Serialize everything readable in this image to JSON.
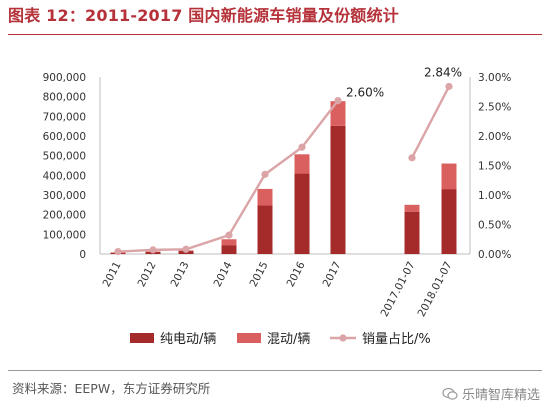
{
  "header": {
    "title": "图表 12：2011-2017 国内新能源车销量及份额统计"
  },
  "chart_data": {
    "type": "bar",
    "categories": [
      "2011",
      "2012",
      "2013",
      "2014",
      "2015",
      "2016",
      "2017",
      "2017.01-07",
      "2018.01-07"
    ],
    "series": [
      {
        "name": "纯电动/辆",
        "kind": "bar-stacked",
        "color": "#a52a2a",
        "values": [
          5000,
          11000,
          15000,
          45000,
          247000,
          409000,
          652000,
          215000,
          330000
        ]
      },
      {
        "name": "混动/辆",
        "kind": "bar-stacked",
        "color": "#d9605f",
        "values": [
          3000,
          2000,
          3000,
          30000,
          84000,
          98000,
          125000,
          35000,
          130000
        ]
      },
      {
        "name": "销量占比/%",
        "kind": "line",
        "axis": "right",
        "color": "#dba5a8",
        "values": [
          0.04,
          0.07,
          0.08,
          0.32,
          1.35,
          1.81,
          2.6,
          1.63,
          2.84
        ]
      }
    ],
    "line_segments": [
      [
        0,
        6
      ],
      [
        7,
        8
      ]
    ],
    "ylim": [
      0,
      900000
    ],
    "y_ticks": [
      "0",
      "100,000",
      "200,000",
      "300,000",
      "400,000",
      "500,000",
      "600,000",
      "700,000",
      "800,000",
      "900,000"
    ],
    "y2lim": [
      0,
      3.0
    ],
    "y2_ticks": [
      "0.00%",
      "0.50%",
      "1.00%",
      "1.50%",
      "2.00%",
      "2.50%",
      "3.00%"
    ],
    "annotations": [
      {
        "index": 6,
        "text": "2.60%"
      },
      {
        "index": 8,
        "text": "2.84%"
      }
    ],
    "legend_position": "bottom",
    "grid": false
  },
  "footer": {
    "source": "资料来源：EEPW，东方证券研究所",
    "watermark": "乐晴智库精选"
  }
}
